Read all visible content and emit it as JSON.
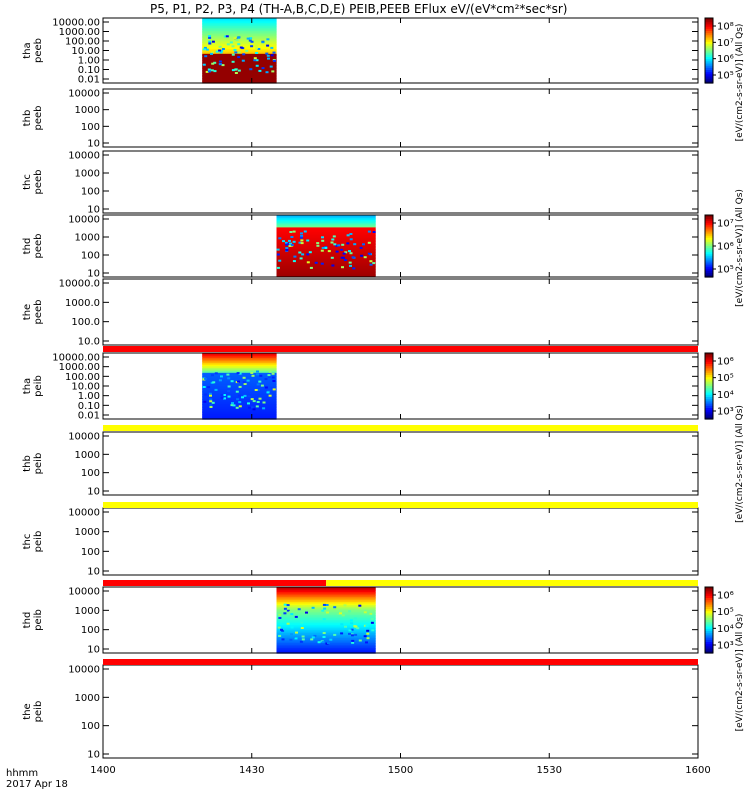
{
  "title": "P5, P1, P2, P3, P4 (TH-A,B,C,D,E) PEIB,PEEB EFlux eV/(eV*cm²*sec*sr)",
  "footer": {
    "label": "hhmm",
    "date": "2017 Apr 18"
  },
  "colors": {
    "red_flag": "#ff0000",
    "yellow_flag": "#ffff00",
    "black": "#000000"
  },
  "chart_data": {
    "type": "heatmap",
    "x_ticks": [
      "1400",
      "1430",
      "1500",
      "1530",
      "1600"
    ],
    "x_range": [
      "14:00",
      "16:00"
    ],
    "panels": [
      {
        "ylabel": [
          "tha",
          "peeb"
        ],
        "yticks": [
          "10000.00",
          "1000.00",
          "100.00",
          "10.00",
          "1.00",
          "0.10",
          "0.01"
        ],
        "data_x": [
          "14:20",
          "14:35"
        ],
        "colorbar": {
          "ticks": [
            "10⁵",
            "10⁶",
            "10⁷",
            "10⁸"
          ]
        }
      },
      {
        "ylabel": [
          "thb",
          "peeb"
        ],
        "yticks": [
          "10000",
          "1000",
          "100",
          "10"
        ],
        "data_x": []
      },
      {
        "ylabel": [
          "thc",
          "peeb"
        ],
        "yticks": [
          "10000",
          "1000",
          "100",
          "10"
        ],
        "data_x": []
      },
      {
        "ylabel": [
          "thd",
          "peeb"
        ],
        "yticks": [
          "10000",
          "1000",
          "100",
          "10"
        ],
        "data_x": [
          "14:35",
          "14:55"
        ],
        "colorbar": {
          "ticks": [
            "10⁵",
            "10⁶",
            "10⁷"
          ]
        }
      },
      {
        "ylabel": [
          "the",
          "peeb"
        ],
        "yticks": [
          "10000.0",
          "1000.0",
          "100.0",
          "10.0"
        ],
        "data_x": []
      },
      {
        "ylabel": [
          "tha",
          "peib"
        ],
        "yticks": [
          "10000.00",
          "1000.00",
          "100.00",
          "10.00",
          "1.00",
          "0.10",
          "0.01"
        ],
        "data_x": [
          "14:20",
          "14:35"
        ],
        "colorbar": {
          "ticks": [
            "10³",
            "10⁴",
            "10⁵",
            "10⁶"
          ]
        }
      },
      {
        "ylabel": [
          "thb",
          "peib"
        ],
        "yticks": [
          "10000",
          "1000",
          "100",
          "10"
        ],
        "data_x": []
      },
      {
        "ylabel": [
          "thc",
          "peib"
        ],
        "yticks": [
          "10000",
          "1000",
          "100",
          "10"
        ],
        "data_x": []
      },
      {
        "ylabel": [
          "thd",
          "peib"
        ],
        "yticks": [
          "10000",
          "1000",
          "100",
          "10"
        ],
        "data_x": [
          "14:35",
          "14:55"
        ],
        "colorbar": {
          "ticks": [
            "10³",
            "10⁴",
            "10⁵",
            "10⁶"
          ]
        }
      },
      {
        "ylabel": [
          "the",
          "peib"
        ],
        "yticks": [
          "10000",
          "1000",
          "100",
          "10"
        ],
        "data_x": []
      }
    ],
    "flag_bars": [
      {
        "after_panel": 4,
        "color": "red"
      },
      {
        "after_panel": 5,
        "color": "yellow"
      },
      {
        "after_panel": 6,
        "color": "yellow"
      },
      {
        "after_panel": 7,
        "color": "red+yellow",
        "split_x": "14:45"
      },
      {
        "after_panel": 8,
        "color": "red"
      }
    ],
    "colorbar_titles": [
      "[eV/(cm2-s-sr-eV)] (All Qs)",
      "[eV/(cm2-s-sr-eV)] (All Qs)",
      "[eV/(cm2-s-sr-eV)] (All Qs)",
      "[eV/(cm2-s-sr-eV)] (All Qs)"
    ]
  }
}
